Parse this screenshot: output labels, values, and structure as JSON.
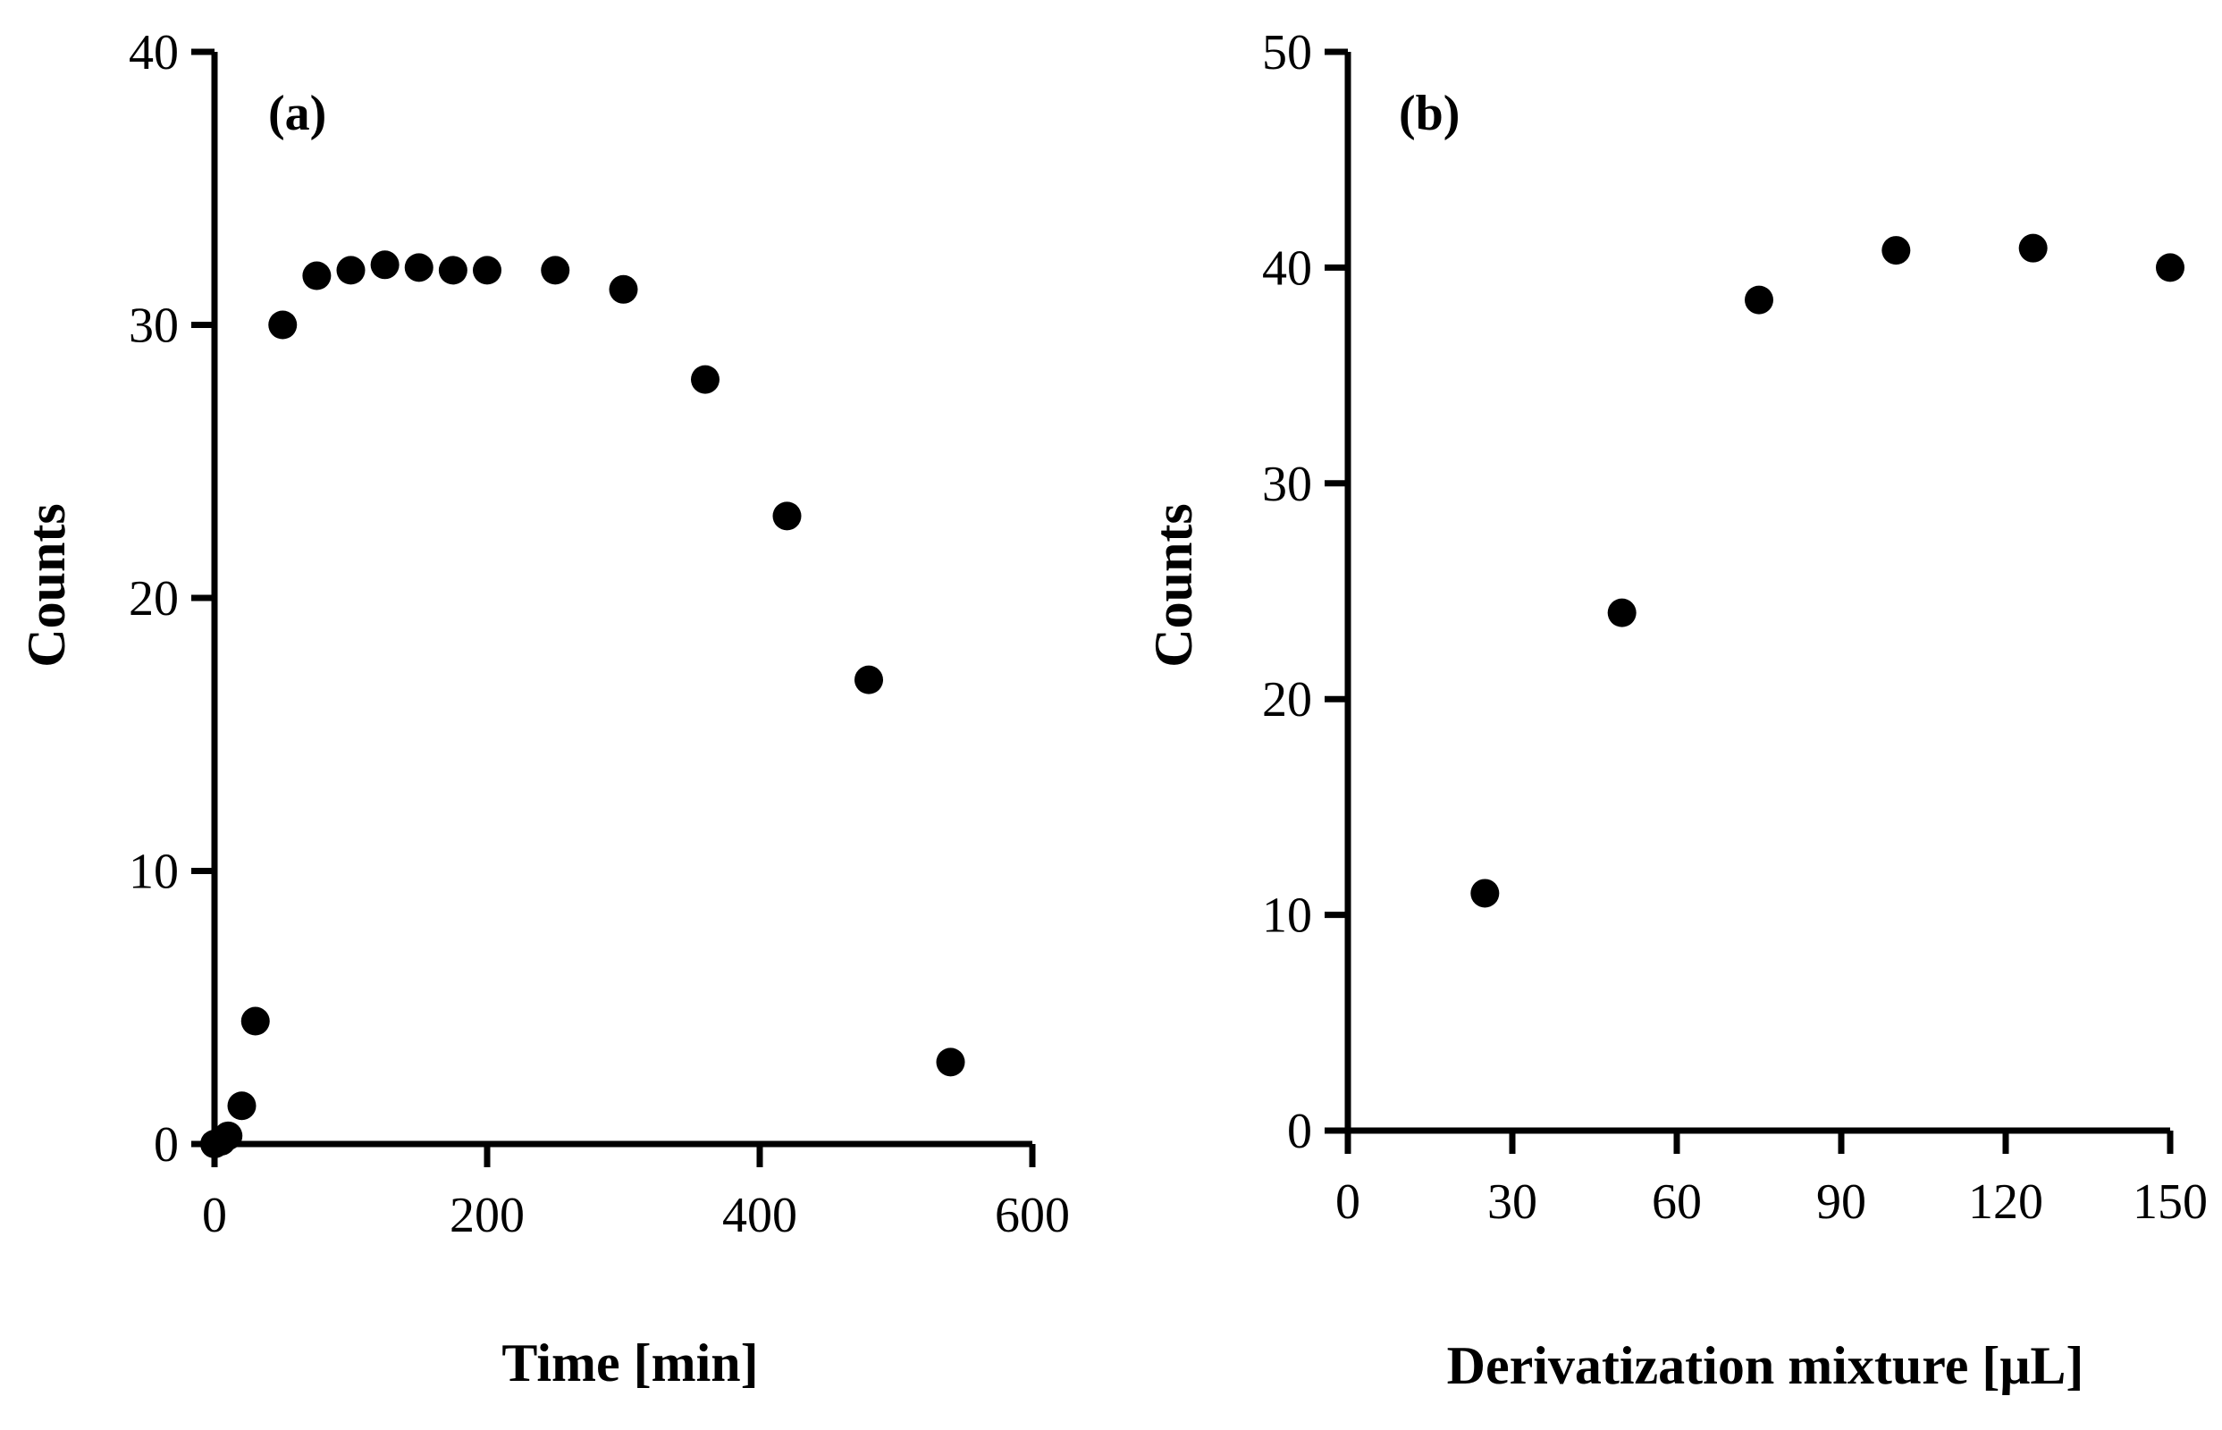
{
  "chart_data": [
    {
      "type": "scatter",
      "panel_label": "(a)",
      "xlabel": "Time [min]",
      "ylabel": "Counts",
      "xlim": [
        0,
        600
      ],
      "ylim": [
        0,
        40
      ],
      "xticks": [
        0,
        200,
        400,
        600
      ],
      "yticks": [
        0,
        10,
        20,
        30,
        40
      ],
      "xtick_labels": [
        "0",
        "200",
        "400",
        "600"
      ],
      "ytick_labels": [
        "0",
        "10",
        "20",
        "30",
        "40"
      ],
      "grid": false,
      "series": [
        {
          "name": "Counts",
          "x": [
            0,
            5,
            10,
            20,
            30,
            50,
            75,
            100,
            125,
            150,
            175,
            200,
            250,
            300,
            360,
            420,
            480,
            540
          ],
          "y": [
            0,
            0.1,
            0.3,
            1.4,
            4.5,
            30,
            31.8,
            32,
            32.2,
            32.1,
            32,
            32,
            32,
            31.3,
            28,
            23,
            17,
            3
          ]
        }
      ]
    },
    {
      "type": "scatter",
      "panel_label": "(b)",
      "xlabel": "Derivatization mixture [μL]",
      "ylabel": "Counts",
      "xlim": [
        0,
        150
      ],
      "ylim": [
        0,
        50
      ],
      "xticks": [
        0,
        30,
        60,
        90,
        120,
        150
      ],
      "yticks": [
        0,
        10,
        20,
        30,
        40,
        50
      ],
      "xtick_labels": [
        "0",
        "30",
        "60",
        "90",
        "120",
        "150"
      ],
      "ytick_labels": [
        "0",
        "10",
        "20",
        "30",
        "40",
        "50"
      ],
      "grid": false,
      "series": [
        {
          "name": "Counts",
          "x": [
            25,
            50,
            75,
            100,
            125,
            150
          ],
          "y": [
            11,
            24,
            38.5,
            40.8,
            40.9,
            40
          ]
        }
      ]
    }
  ]
}
